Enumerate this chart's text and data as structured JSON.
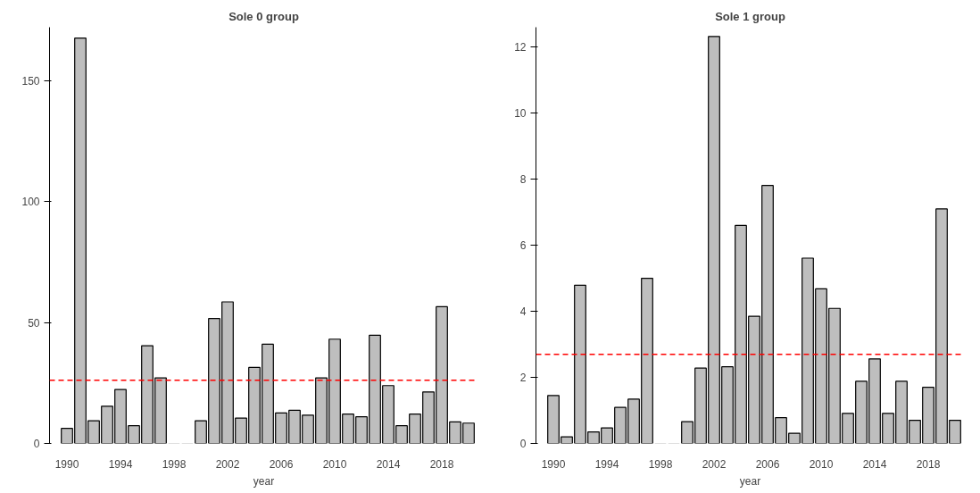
{
  "chart_data": [
    {
      "type": "bar",
      "title": "Sole 0 group",
      "xlabel": "year",
      "categories": [
        "1990",
        null,
        null,
        null,
        "1994",
        null,
        null,
        null,
        "1998",
        null,
        null,
        null,
        "2002",
        null,
        null,
        null,
        "2006",
        null,
        null,
        null,
        "2010",
        null,
        null,
        null,
        "2014",
        null,
        null,
        null,
        "2018",
        null,
        null
      ],
      "values": [
        6.2,
        167.5,
        9.4,
        15.4,
        22.3,
        7.3,
        40.4,
        27.1,
        0,
        0,
        9.4,
        51.6,
        58.5,
        10.5,
        31.4,
        41.0,
        12.6,
        13.7,
        11.7,
        27.1,
        43.1,
        12.1,
        11.0,
        44.7,
        23.9,
        7.3,
        12.1,
        21.3,
        56.5,
        8.9,
        8.4
      ],
      "color": "#bebebe",
      "ylim": [
        0,
        172
      ],
      "yticks": [
        0,
        50,
        100,
        150
      ],
      "ref_lines": [
        {
          "axis": "y",
          "value": 26.1,
          "color": "#ff0000",
          "line_style": "dashed"
        }
      ]
    },
    {
      "type": "bar",
      "title": "Sole 1 group",
      "xlabel": "year",
      "categories": [
        "1990",
        null,
        null,
        null,
        "1994",
        null,
        null,
        null,
        "1998",
        null,
        null,
        null,
        "2002",
        null,
        null,
        null,
        "2006",
        null,
        null,
        null,
        "2010",
        null,
        null,
        null,
        "2014",
        null,
        null,
        null,
        "2018",
        null,
        null
      ],
      "values": [
        1.45,
        0.2,
        4.79,
        0.35,
        0.47,
        1.09,
        1.34,
        5.0,
        0,
        0,
        0.66,
        2.28,
        12.32,
        2.32,
        6.6,
        3.85,
        7.81,
        0.78,
        0.31,
        5.61,
        4.68,
        4.09,
        0.91,
        1.88,
        2.56,
        0.91,
        1.88,
        0.7,
        1.7,
        7.1,
        0.7
      ],
      "color": "#bebebe",
      "ylim": [
        0,
        12.6
      ],
      "yticks": [
        0,
        2,
        4,
        6,
        8,
        10,
        12
      ],
      "ref_lines": [
        {
          "axis": "y",
          "value": 2.7,
          "color": "#ff0000",
          "line_style": "dashed"
        }
      ]
    }
  ]
}
